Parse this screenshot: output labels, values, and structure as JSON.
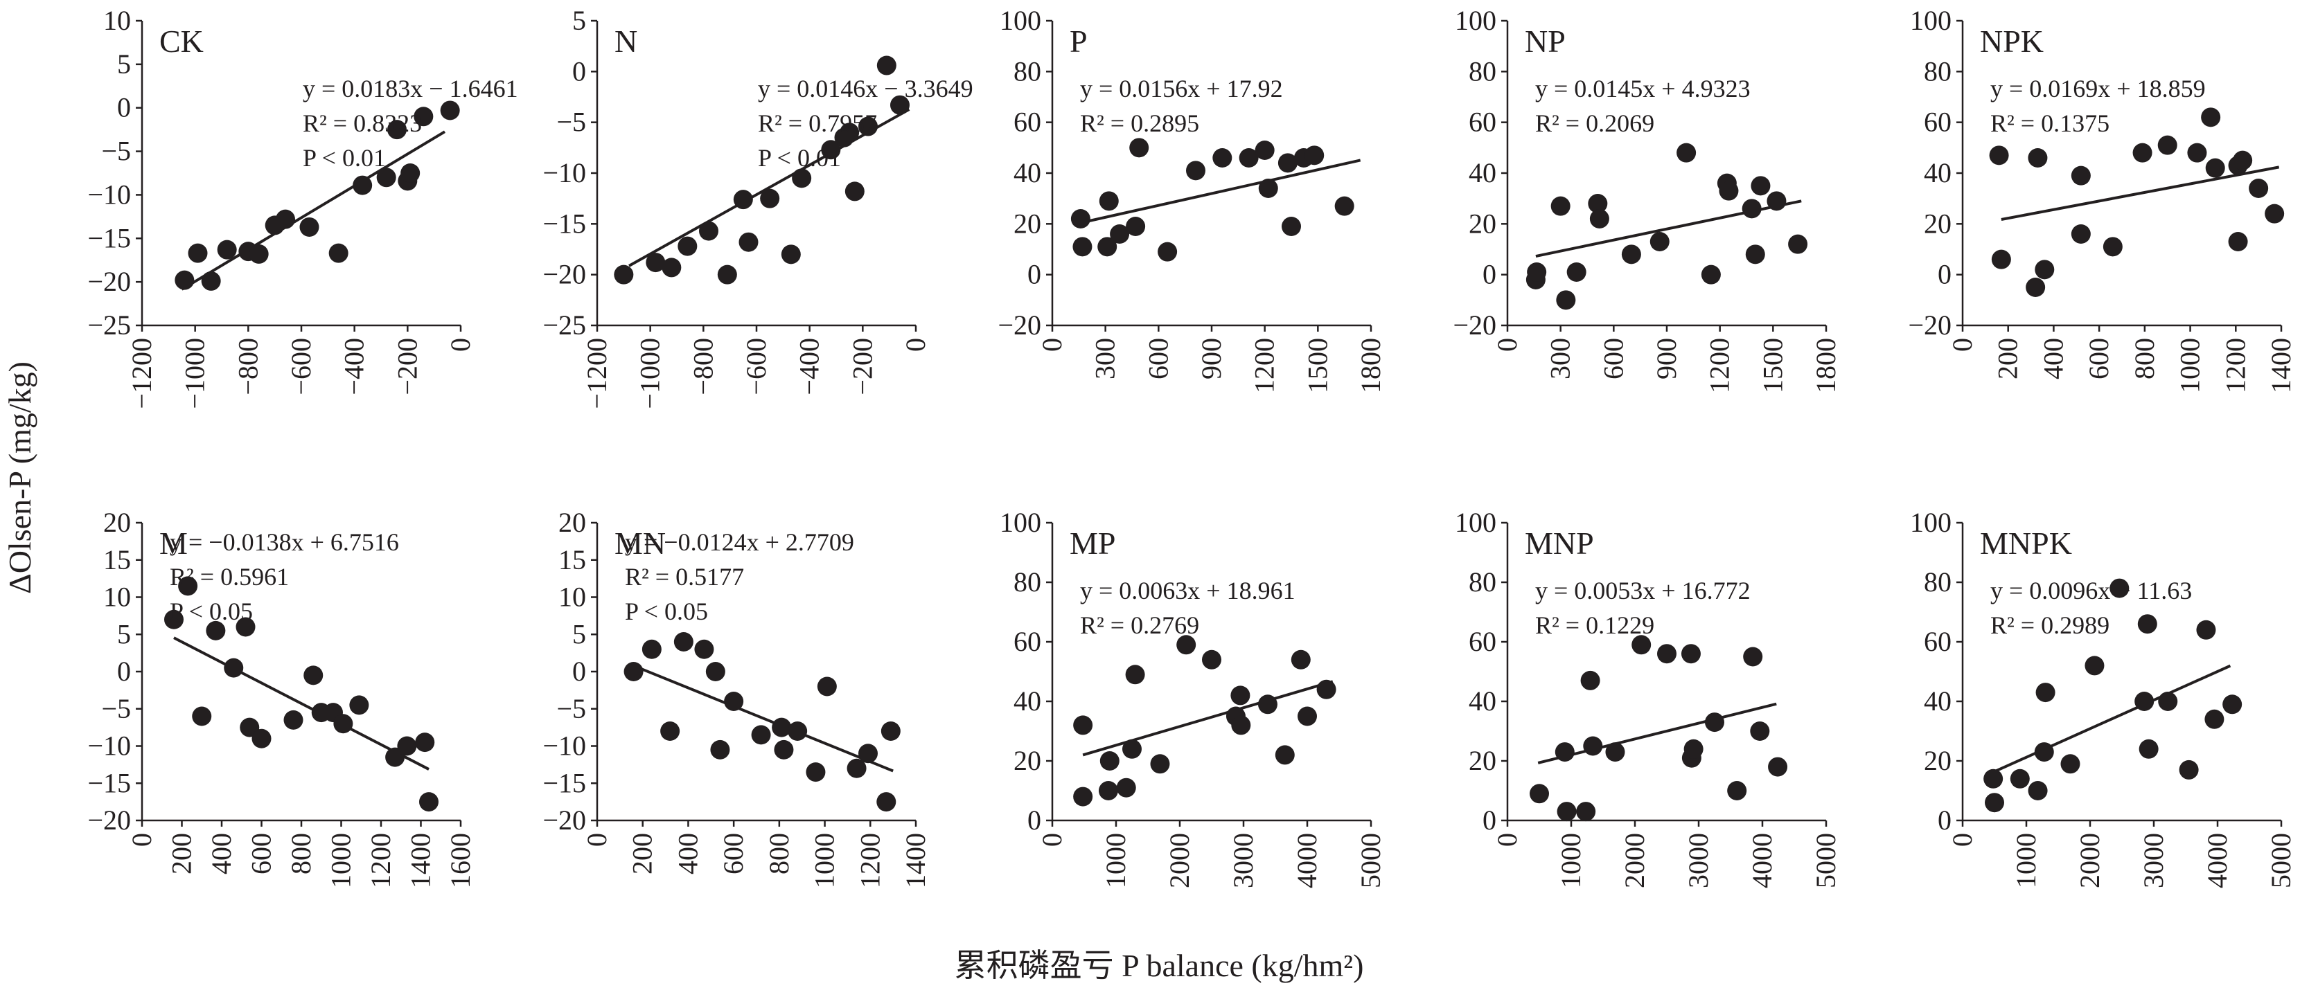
{
  "figure": {
    "y_axis_title": "ΔOlsen-P (mg/kg)",
    "x_axis_title": "累积磷盈亏 P balance (kg/hm²)"
  },
  "chart_data": [
    {
      "type": "scatter",
      "label": "CK",
      "equation": "y = 0.0183x − 1.6461",
      "r2": "R² = 0.8323",
      "p": "P < 0.01",
      "slope": 0.0183,
      "intercept": -1.6461,
      "xlim": [
        -1200,
        0
      ],
      "xticks": [
        -1200,
        -1000,
        -800,
        -600,
        -400,
        -200,
        0
      ],
      "ylim": [
        -25,
        10
      ],
      "yticks": [
        -25,
        -20,
        -15,
        -10,
        -5,
        0,
        5,
        10
      ],
      "xtick_labels": [
        "−1200",
        "−1000",
        "−800",
        "−600",
        "−400",
        "−200",
        "0"
      ],
      "ytick_labels": [
        "−25",
        "−20",
        "−15",
        "−10",
        "−5",
        "0",
        "5",
        "10"
      ],
      "fit_x": [
        -1050,
        -60
      ],
      "points": [
        [
          -1040,
          -19.8
        ],
        [
          -990,
          -16.7
        ],
        [
          -940,
          -19.9
        ],
        [
          -880,
          -16.3
        ],
        [
          -800,
          -16.5
        ],
        [
          -760,
          -16.8
        ],
        [
          -700,
          -13.5
        ],
        [
          -660,
          -12.8
        ],
        [
          -570,
          -13.7
        ],
        [
          -460,
          -16.7
        ],
        [
          -370,
          -8.9
        ],
        [
          -280,
          -8
        ],
        [
          -240,
          -2.5
        ],
        [
          -200,
          -8.4
        ],
        [
          -190,
          -7.5
        ],
        [
          -140,
          -1
        ],
        [
          -40,
          -0.3
        ]
      ]
    },
    {
      "type": "scatter",
      "label": "N",
      "equation": "y = 0.0146x − 3.3649",
      "r2": "R² = 0.7957",
      "p": "P < 0.01",
      "slope": 0.0146,
      "intercept": -3.3649,
      "xlim": [
        -1200,
        0
      ],
      "xticks": [
        -1200,
        -1000,
        -800,
        -600,
        -400,
        -200,
        0
      ],
      "ylim": [
        -25,
        5
      ],
      "yticks": [
        -25,
        -20,
        -15,
        -10,
        -5,
        0,
        5
      ],
      "xtick_labels": [
        "−1200",
        "−1000",
        "−800",
        "−600",
        "−400",
        "−200",
        "0"
      ],
      "ytick_labels": [
        "−25",
        "−20",
        "−15",
        "−10",
        "−5",
        "0",
        "5"
      ],
      "fit_x": [
        -1080,
        -25
      ],
      "points": [
        [
          -1100,
          -20
        ],
        [
          -980,
          -18.8
        ],
        [
          -920,
          -19.3
        ],
        [
          -860,
          -17.2
        ],
        [
          -780,
          -15.7
        ],
        [
          -710,
          -20
        ],
        [
          -650,
          -12.6
        ],
        [
          -630,
          -16.8
        ],
        [
          -550,
          -12.5
        ],
        [
          -430,
          -10.5
        ],
        [
          -470,
          -18
        ],
        [
          -320,
          -7.7
        ],
        [
          -270,
          -6.5
        ],
        [
          -250,
          -6
        ],
        [
          -230,
          -11.8
        ],
        [
          -180,
          -5.4
        ],
        [
          -110,
          0.6
        ],
        [
          -60,
          -3.3
        ]
      ]
    },
    {
      "type": "scatter",
      "label": "P",
      "equation": "y = 0.0156x + 17.92",
      "r2": "R² = 0.2895",
      "slope": 0.0156,
      "intercept": 17.92,
      "xlim": [
        0,
        1800
      ],
      "xticks": [
        0,
        300,
        600,
        900,
        1200,
        1500,
        1800
      ],
      "ylim": [
        -20,
        100
      ],
      "yticks": [
        -20,
        0,
        20,
        40,
        60,
        80,
        100
      ],
      "xtick_labels": [
        "0",
        "300",
        "600",
        "900",
        "1200",
        "1500",
        "1800"
      ],
      "ytick_labels": [
        "−20",
        "0",
        "20",
        "40",
        "60",
        "80",
        "100"
      ],
      "fit_x": [
        170,
        1740
      ],
      "points": [
        [
          160,
          22
        ],
        [
          170,
          11
        ],
        [
          310,
          11
        ],
        [
          320,
          29
        ],
        [
          380,
          16
        ],
        [
          470,
          19
        ],
        [
          490,
          50
        ],
        [
          650,
          9
        ],
        [
          810,
          41
        ],
        [
          960,
          46
        ],
        [
          1110,
          46
        ],
        [
          1200,
          49
        ],
        [
          1220,
          34
        ],
        [
          1330,
          44
        ],
        [
          1350,
          19
        ],
        [
          1420,
          46
        ],
        [
          1480,
          47
        ],
        [
          1650,
          27
        ]
      ]
    },
    {
      "type": "scatter",
      "label": "NP",
      "equation": "y = 0.0145x + 4.9323",
      "r2": "R² = 0.2069",
      "slope": 0.0145,
      "intercept": 4.9323,
      "xlim": [
        0,
        1800
      ],
      "xticks": [
        0,
        300,
        600,
        900,
        1200,
        1500,
        1800
      ],
      "ylim": [
        -20,
        100
      ],
      "yticks": [
        -20,
        0,
        20,
        40,
        60,
        80,
        100
      ],
      "xtick_labels": [
        "0",
        "300",
        "600",
        "900",
        "1200",
        "1500",
        "1800"
      ],
      "ytick_labels": [
        "−20",
        "0",
        "20",
        "40",
        "60",
        "80",
        "100"
      ],
      "fit_x": [
        160,
        1660
      ],
      "points": [
        [
          160,
          -2
        ],
        [
          165,
          1
        ],
        [
          300,
          27
        ],
        [
          330,
          -10
        ],
        [
          390,
          1
        ],
        [
          510,
          28
        ],
        [
          520,
          22
        ],
        [
          700,
          8
        ],
        [
          860,
          13
        ],
        [
          1010,
          48
        ],
        [
          1150,
          0
        ],
        [
          1240,
          36
        ],
        [
          1250,
          33
        ],
        [
          1380,
          26
        ],
        [
          1400,
          8
        ],
        [
          1430,
          35
        ],
        [
          1520,
          29
        ],
        [
          1640,
          12
        ]
      ]
    },
    {
      "type": "scatter",
      "label": "NPK",
      "equation": "y = 0.0169x + 18.859",
      "r2": "R² = 0.1375",
      "slope": 0.0169,
      "intercept": 18.859,
      "xlim": [
        0,
        1400
      ],
      "xticks": [
        0,
        200,
        400,
        600,
        800,
        1000,
        1200,
        1400
      ],
      "ylim": [
        -20,
        100
      ],
      "yticks": [
        -20,
        0,
        20,
        40,
        60,
        80,
        100
      ],
      "xtick_labels": [
        "0",
        "200",
        "400",
        "600",
        "800",
        "1000",
        "1200",
        "1400"
      ],
      "ytick_labels": [
        "−20",
        "0",
        "20",
        "40",
        "60",
        "80",
        "100"
      ],
      "fit_x": [
        170,
        1390
      ],
      "points": [
        [
          160,
          47
        ],
        [
          170,
          6
        ],
        [
          320,
          -5
        ],
        [
          330,
          46
        ],
        [
          360,
          2
        ],
        [
          520,
          39
        ],
        [
          520,
          16
        ],
        [
          660,
          11
        ],
        [
          790,
          48
        ],
        [
          900,
          51
        ],
        [
          1030,
          48
        ],
        [
          1090,
          62
        ],
        [
          1110,
          42
        ],
        [
          1210,
          43
        ],
        [
          1210,
          13
        ],
        [
          1230,
          45
        ],
        [
          1300,
          34
        ],
        [
          1370,
          24
        ]
      ]
    },
    {
      "type": "scatter",
      "label": "M",
      "equation": "y = −0.0138x + 6.7516",
      "r2": "R² = 0.5961",
      "p": "P < 0.05",
      "slope": -0.0138,
      "intercept": 6.7516,
      "xlim": [
        0,
        1600
      ],
      "xticks": [
        0,
        200,
        400,
        600,
        800,
        1000,
        1200,
        1400,
        1600
      ],
      "ylim": [
        -20,
        20
      ],
      "yticks": [
        -20,
        -15,
        -10,
        -5,
        0,
        5,
        10,
        15,
        20
      ],
      "xtick_labels": [
        "0",
        "200",
        "400",
        "600",
        "800",
        "1000",
        "1200",
        "1400",
        "1600"
      ],
      "ytick_labels": [
        "−20",
        "−15",
        "−10",
        "−5",
        "0",
        "5",
        "10",
        "15",
        "20"
      ],
      "fit_x": [
        160,
        1440
      ],
      "points": [
        [
          160,
          7
        ],
        [
          230,
          11.5
        ],
        [
          300,
          -6
        ],
        [
          370,
          5.5
        ],
        [
          460,
          0.5
        ],
        [
          520,
          6
        ],
        [
          540,
          -7.5
        ],
        [
          600,
          -9
        ],
        [
          760,
          -6.5
        ],
        [
          860,
          -0.5
        ],
        [
          900,
          -5.5
        ],
        [
          960,
          -5.5
        ],
        [
          1010,
          -7
        ],
        [
          1090,
          -4.5
        ],
        [
          1270,
          -11.5
        ],
        [
          1330,
          -10
        ],
        [
          1420,
          -9.5
        ],
        [
          1440,
          -17.5
        ]
      ]
    },
    {
      "type": "scatter",
      "label": "MN",
      "equation": "y = −0.0124x + 2.7709",
      "r2": "R² = 0.5177",
      "p": "P < 0.05",
      "slope": -0.0124,
      "intercept": 2.7709,
      "xlim": [
        0,
        1400
      ],
      "xticks": [
        0,
        200,
        400,
        600,
        800,
        1000,
        1200,
        1400
      ],
      "ylim": [
        -20,
        20
      ],
      "yticks": [
        -20,
        -15,
        -10,
        -5,
        0,
        5,
        10,
        15,
        20
      ],
      "xtick_labels": [
        "0",
        "200",
        "400",
        "600",
        "800",
        "1000",
        "1200",
        "1400"
      ],
      "ytick_labels": [
        "−20",
        "−15",
        "−10",
        "−5",
        "0",
        "5",
        "10",
        "15",
        "20"
      ],
      "fit_x": [
        160,
        1300
      ],
      "points": [
        [
          160,
          0
        ],
        [
          240,
          3
        ],
        [
          320,
          -8
        ],
        [
          380,
          4
        ],
        [
          470,
          3
        ],
        [
          520,
          0
        ],
        [
          540,
          -10.5
        ],
        [
          600,
          -4
        ],
        [
          720,
          -8.5
        ],
        [
          810,
          -7.5
        ],
        [
          820,
          -10.5
        ],
        [
          880,
          -8
        ],
        [
          960,
          -13.5
        ],
        [
          1010,
          -2
        ],
        [
          1140,
          -13
        ],
        [
          1190,
          -11
        ],
        [
          1270,
          -17.5
        ],
        [
          1290,
          -8
        ]
      ]
    },
    {
      "type": "scatter",
      "label": "MP",
      "equation": "y = 0.0063x + 18.961",
      "r2": "R² = 0.2769",
      "slope": 0.0063,
      "intercept": 18.961,
      "xlim": [
        0,
        5000
      ],
      "xticks": [
        0,
        1000,
        2000,
        3000,
        4000,
        5000
      ],
      "ylim": [
        0,
        100
      ],
      "yticks": [
        0,
        20,
        40,
        60,
        80,
        100
      ],
      "xtick_labels": [
        "0",
        "1000",
        "2000",
        "3000",
        "4000",
        "5000"
      ],
      "ytick_labels": [
        "0",
        "20",
        "40",
        "60",
        "80",
        "100"
      ],
      "fit_x": [
        480,
        4400
      ],
      "points": [
        [
          480,
          32
        ],
        [
          480,
          8
        ],
        [
          880,
          10
        ],
        [
          900,
          20
        ],
        [
          1160,
          11
        ],
        [
          1250,
          24
        ],
        [
          1300,
          49
        ],
        [
          1690,
          19
        ],
        [
          2100,
          59
        ],
        [
          2500,
          54
        ],
        [
          2880,
          35
        ],
        [
          2950,
          42
        ],
        [
          2960,
          32
        ],
        [
          3380,
          39
        ],
        [
          3650,
          22
        ],
        [
          3900,
          54
        ],
        [
          4000,
          35
        ],
        [
          4300,
          44
        ]
      ]
    },
    {
      "type": "scatter",
      "label": "MNP",
      "equation": "y = 0.0053x + 16.772",
      "r2": "R² = 0.1229",
      "slope": 0.0053,
      "intercept": 16.772,
      "xlim": [
        0,
        5000
      ],
      "xticks": [
        0,
        1000,
        2000,
        3000,
        4000,
        5000
      ],
      "ylim": [
        0,
        100
      ],
      "yticks": [
        0,
        20,
        40,
        60,
        80,
        100
      ],
      "xtick_labels": [
        "0",
        "1000",
        "2000",
        "3000",
        "4000",
        "5000"
      ],
      "ytick_labels": [
        "0",
        "20",
        "40",
        "60",
        "80",
        "100"
      ],
      "fit_x": [
        480,
        4220
      ],
      "points": [
        [
          500,
          9
        ],
        [
          900,
          23
        ],
        [
          930,
          3
        ],
        [
          1230,
          3
        ],
        [
          1300,
          47
        ],
        [
          1340,
          25
        ],
        [
          1690,
          23
        ],
        [
          2100,
          59
        ],
        [
          2500,
          56
        ],
        [
          2880,
          56
        ],
        [
          2890,
          21
        ],
        [
          2920,
          24
        ],
        [
          3250,
          33
        ],
        [
          3600,
          10
        ],
        [
          3850,
          55
        ],
        [
          3960,
          30
        ],
        [
          4240,
          18
        ]
      ]
    },
    {
      "type": "scatter",
      "label": "MNPK",
      "equation": "y = 0.0096x + 11.63",
      "r2": "R² = 0.2989",
      "slope": 0.0096,
      "intercept": 11.63,
      "xlim": [
        0,
        5000
      ],
      "xticks": [
        0,
        1000,
        2000,
        3000,
        4000,
        5000
      ],
      "ylim": [
        0,
        100
      ],
      "yticks": [
        0,
        20,
        40,
        60,
        80,
        100
      ],
      "xtick_labels": [
        "0",
        "1000",
        "2000",
        "3000",
        "4000",
        "5000"
      ],
      "ytick_labels": [
        "0",
        "20",
        "40",
        "60",
        "80",
        "100"
      ],
      "fit_x": [
        480,
        4200
      ],
      "points": [
        [
          480,
          14
        ],
        [
          500,
          6
        ],
        [
          900,
          14
        ],
        [
          1180,
          10
        ],
        [
          1280,
          23
        ],
        [
          1300,
          43
        ],
        [
          1690,
          19
        ],
        [
          2070,
          52
        ],
        [
          2460,
          78
        ],
        [
          2850,
          40
        ],
        [
          2900,
          66
        ],
        [
          2920,
          24
        ],
        [
          3220,
          40
        ],
        [
          3550,
          17
        ],
        [
          3820,
          64
        ],
        [
          3950,
          34
        ],
        [
          4230,
          39
        ]
      ]
    }
  ]
}
